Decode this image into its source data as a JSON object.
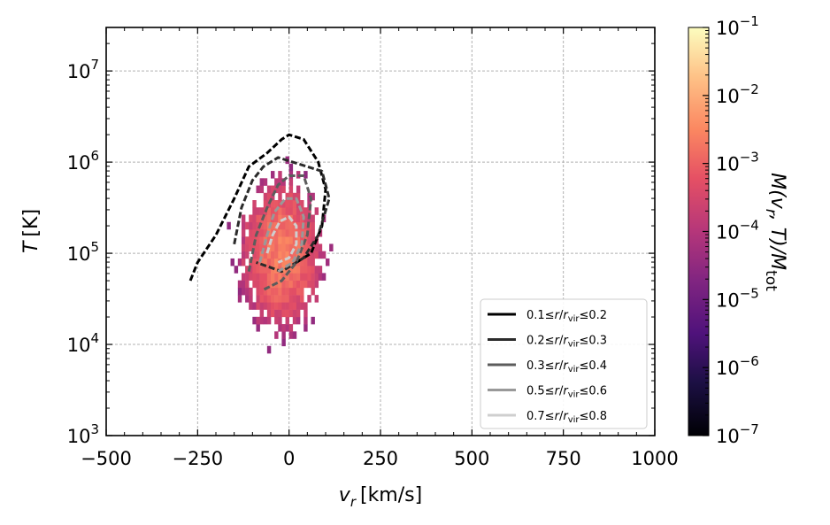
{
  "chart_data": {
    "type": "heatmap",
    "title": "",
    "x_axis": {
      "label_main": "v",
      "label_sub": "r",
      "label_unit": "[km/s]",
      "range": [
        -500,
        1000
      ],
      "ticks": [
        -500,
        -250,
        0,
        250,
        500,
        750,
        1000
      ],
      "tick_labels": [
        "−500",
        "−250",
        "0",
        "250",
        "500",
        "750",
        "1000"
      ]
    },
    "y_axis": {
      "label_main": "T",
      "label_unit": "[K]",
      "scale": "log",
      "range": [
        1000,
        30000000
      ],
      "ticks": [
        1000,
        10000,
        100000,
        1000000,
        10000000
      ],
      "tick_labels": [
        {
          "base": "10",
          "exp": "3"
        },
        {
          "base": "10",
          "exp": "4"
        },
        {
          "base": "10",
          "exp": "5"
        },
        {
          "base": "10",
          "exp": "6"
        },
        {
          "base": "10",
          "exp": "7"
        }
      ]
    },
    "grid": true,
    "colorbar": {
      "label_text": "M(v",
      "label_sub_r": "r",
      "label_mid": ", T)/M",
      "label_sub_tot": "tot",
      "scale": "log",
      "range": [
        1e-07,
        0.1
      ],
      "colormap": "magma",
      "ticks": [
        {
          "value": 1e-07,
          "base": "10",
          "exp": "−7"
        },
        {
          "value": 1e-06,
          "base": "10",
          "exp": "−6"
        },
        {
          "value": 1e-05,
          "base": "10",
          "exp": "−5"
        },
        {
          "value": 0.0001,
          "base": "10",
          "exp": "−4"
        },
        {
          "value": 0.001,
          "base": "10",
          "exp": "−3"
        },
        {
          "value": 0.01,
          "base": "10",
          "exp": "−2"
        },
        {
          "value": 0.1,
          "base": "10",
          "exp": "−1"
        }
      ]
    },
    "heatmap_blob": {
      "core": {
        "vr_center": -20,
        "logT_center": 5.0,
        "vr_spread": 80,
        "logT_spread": 0.6,
        "mass_fraction_peak": 0.004
      },
      "extent": {
        "vr_min": -290,
        "vr_max": 300,
        "T_min": 8000,
        "T_max": 3000000
      }
    },
    "legend": {
      "position": "lower-right",
      "entries": [
        {
          "lo": "0.1",
          "hi": "0.2",
          "color": "#000000"
        },
        {
          "lo": "0.2",
          "hi": "0.3",
          "color": "#2b2b2b"
        },
        {
          "lo": "0.3",
          "hi": "0.4",
          "color": "#5c5c5c"
        },
        {
          "lo": "0.5",
          "hi": "0.6",
          "color": "#999999"
        },
        {
          "lo": "0.7",
          "hi": "0.8",
          "color": "#cfcfcf"
        }
      ],
      "symbol_leq": "≤",
      "symbol_r": "r",
      "symbol_slash": "/",
      "symbol_rvir": "r",
      "symbol_vir": "vir"
    },
    "contours": [
      {
        "shell": "0.1-0.2",
        "color": "#000000",
        "points": [
          [
            -270,
            4.7
          ],
          [
            -250,
            4.9
          ],
          [
            -200,
            5.2
          ],
          [
            -150,
            5.6
          ],
          [
            -110,
            5.95
          ],
          [
            -60,
            6.1
          ],
          [
            -20,
            6.25
          ],
          [
            0,
            6.3
          ],
          [
            40,
            6.25
          ],
          [
            80,
            6.0
          ],
          [
            100,
            5.7
          ],
          [
            90,
            5.3
          ],
          [
            60,
            5.0
          ],
          [
            20,
            4.9
          ]
        ]
      },
      {
        "shell": "0.2-0.3",
        "color": "#2b2b2b",
        "points": [
          [
            -150,
            5.1
          ],
          [
            -130,
            5.5
          ],
          [
            -100,
            5.8
          ],
          [
            -70,
            5.95
          ],
          [
            -30,
            6.05
          ],
          [
            10,
            6.0
          ],
          [
            50,
            5.95
          ],
          [
            90,
            5.9
          ],
          [
            110,
            5.6
          ],
          [
            80,
            5.2
          ],
          [
            40,
            4.95
          ],
          [
            -20,
            4.8
          ],
          [
            -90,
            4.9
          ]
        ]
      },
      {
        "shell": "0.3-0.4",
        "color": "#5c5c5c",
        "points": [
          [
            -110,
            4.8
          ],
          [
            -90,
            5.2
          ],
          [
            -60,
            5.5
          ],
          [
            -30,
            5.75
          ],
          [
            0,
            5.85
          ],
          [
            40,
            5.85
          ],
          [
            60,
            5.6
          ],
          [
            50,
            5.2
          ],
          [
            20,
            4.9
          ],
          [
            -20,
            4.7
          ],
          [
            -70,
            4.6
          ]
        ]
      },
      {
        "shell": "0.5-0.6",
        "color": "#999999",
        "points": [
          [
            -80,
            4.9
          ],
          [
            -60,
            5.2
          ],
          [
            -40,
            5.45
          ],
          [
            -10,
            5.6
          ],
          [
            20,
            5.6
          ],
          [
            40,
            5.4
          ],
          [
            35,
            5.1
          ],
          [
            10,
            4.9
          ],
          [
            -30,
            4.8
          ]
        ]
      },
      {
        "shell": "0.7-0.8",
        "color": "#cfcfcf",
        "points": [
          [
            -60,
            5.0
          ],
          [
            -45,
            5.2
          ],
          [
            -25,
            5.35
          ],
          [
            0,
            5.4
          ],
          [
            20,
            5.3
          ],
          [
            20,
            5.1
          ],
          [
            0,
            4.95
          ],
          [
            -30,
            4.9
          ]
        ]
      }
    ]
  }
}
